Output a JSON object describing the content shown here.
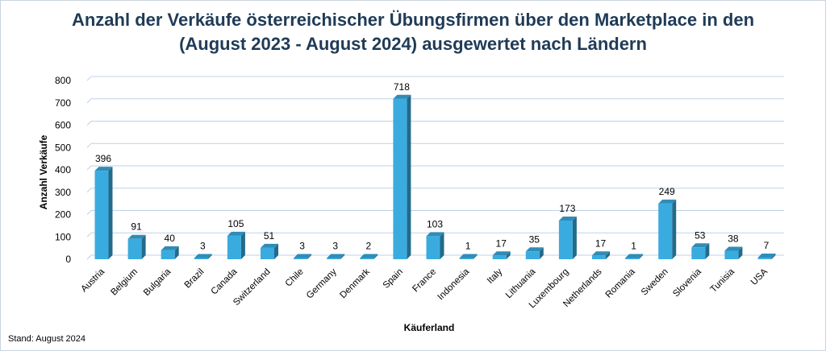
{
  "chart_data": {
    "type": "bar",
    "title_line1": "Anzahl der Verkäufe österreichischer Übungsfirmen über den Marketplace in den",
    "title_line2": "(August  2023 - August 2024) ausgewertet nach Ländern",
    "xlabel": "Käuferland",
    "ylabel": "Anzahl Verkäufe",
    "ylim": [
      0,
      800
    ],
    "yticks": [
      0,
      100,
      200,
      300,
      400,
      500,
      600,
      700,
      800
    ],
    "grid": true,
    "bar_color": "#3aabdf",
    "categories": [
      "Austria",
      "Belgium",
      "Bulgaria",
      "Brazil",
      "Canada",
      "Switzerland",
      "Chile",
      "Germany",
      "Denmark",
      "Spain",
      "France",
      "Indonesia",
      "Italy",
      "Lithuania",
      "Luxembourg",
      "Netherlands",
      "Romania",
      "Sweden",
      "Slovenia",
      "Tunisia",
      "USA"
    ],
    "values": [
      396,
      91,
      40,
      3,
      105,
      51,
      3,
      3,
      2,
      718,
      103,
      1,
      17,
      35,
      173,
      17,
      1,
      249,
      53,
      38,
      7
    ]
  },
  "footer": "Stand: August 2024"
}
